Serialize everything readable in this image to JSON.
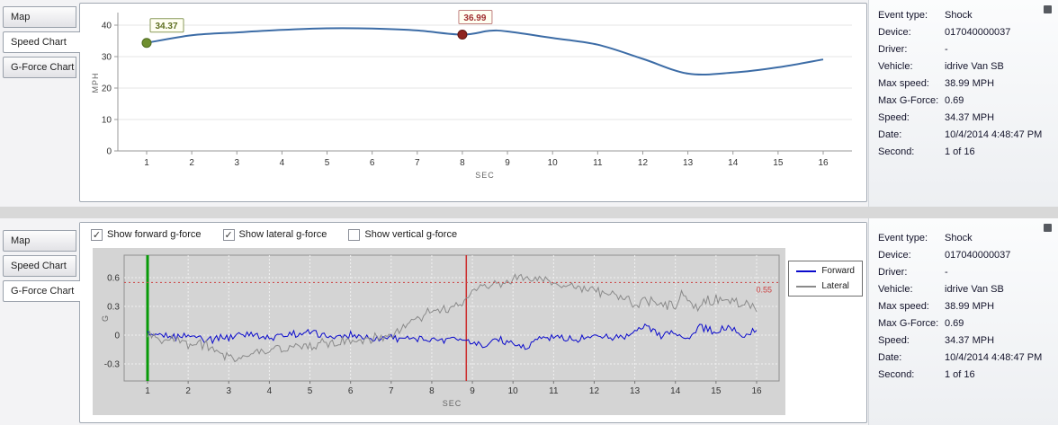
{
  "top_tabs": {
    "items": [
      {
        "label": "Map"
      },
      {
        "label": "Speed Chart"
      },
      {
        "label": "G-Force Chart"
      }
    ],
    "selected_index": 1
  },
  "bottom_tabs": {
    "items": [
      {
        "label": "Map"
      },
      {
        "label": "Speed Chart"
      },
      {
        "label": "G-Force Chart"
      }
    ],
    "selected_index": 2
  },
  "gforce_controls": {
    "checkboxes": [
      {
        "label": "Show forward g-force",
        "checked": true
      },
      {
        "label": "Show lateral g-force",
        "checked": true
      },
      {
        "label": "Show vertical g-force",
        "checked": false
      }
    ]
  },
  "event_info": {
    "rows": [
      {
        "label": "Event type:",
        "value": "Shock"
      },
      {
        "label": "Device:",
        "value": "017040000037"
      },
      {
        "label": "Driver:",
        "value": "-"
      },
      {
        "label": "Vehicle:",
        "value": "idrive Van SB"
      },
      {
        "label": "Max speed:",
        "value": "38.99 MPH"
      },
      {
        "label": "Max G-Force:",
        "value": "0.69"
      },
      {
        "label": "Speed:",
        "value": "34.37 MPH"
      },
      {
        "label": "Date:",
        "value": "10/4/2014 4:48:47 PM"
      },
      {
        "label": "Second:",
        "value": "1 of 16"
      }
    ]
  },
  "chart_data": [
    {
      "id": "speed",
      "type": "line",
      "title": "",
      "xlabel": "SEC",
      "ylabel": "MPH",
      "x_ticks": [
        1,
        2,
        3,
        4,
        5,
        6,
        7,
        8,
        9,
        10,
        11,
        12,
        13,
        14,
        15,
        16
      ],
      "y_ticks": [
        0,
        10,
        20,
        30,
        40
      ],
      "ylim": [
        0,
        40
      ],
      "x": [
        1,
        2,
        3,
        4,
        5,
        6,
        7,
        8,
        8.6,
        9,
        10,
        11,
        12,
        13,
        14,
        15,
        16
      ],
      "values": [
        34.37,
        36.8,
        37.7,
        38.5,
        38.99,
        38.9,
        38.3,
        36.99,
        38.2,
        38.0,
        35.9,
        33.8,
        29.3,
        24.6,
        24.9,
        26.6,
        29.1
      ],
      "line_color": "#3c6ca6",
      "grid": true,
      "markers": [
        {
          "x": 1,
          "y": 34.37,
          "label": "34.37",
          "fill": "#6f8f2f",
          "stroke": "#4e6b1f",
          "text_color": "#5f7020",
          "box_border": "#8a9a5a",
          "box_fill": "#fffff2",
          "label_dx": 22
        },
        {
          "x": 8,
          "y": 36.99,
          "label": "36.99",
          "fill": "#8e2420",
          "stroke": "#5e1512",
          "text_color": "#a03030",
          "box_border": "#c08080",
          "box_fill": "#fffff2",
          "label_dx": 14
        }
      ]
    },
    {
      "id": "gforce",
      "type": "line",
      "title": "",
      "xlabel": "SEC",
      "ylabel": "G",
      "x_ticks": [
        1,
        2,
        3,
        4,
        5,
        6,
        7,
        8,
        9,
        10,
        11,
        12,
        13,
        14,
        15,
        16
      ],
      "y_ticks": [
        -0.3,
        0,
        0.3,
        0.6
      ],
      "ylim": [
        -0.45,
        0.8
      ],
      "plot_bg": "#d4d4d4",
      "legend_position": "right-top",
      "threshold": {
        "y": 0.55,
        "label": "0.55",
        "color": "#cc4040",
        "style": "dotted"
      },
      "cursors": [
        {
          "x": 1,
          "color": "#089a08",
          "width": 3
        },
        {
          "x": 8.85,
          "color": "#cc2b2b",
          "width": 1.5
        }
      ],
      "series": [
        {
          "name": "Forward",
          "color": "#0a0acc",
          "noise": 0.06,
          "keys_x": [
            1,
            1.5,
            2,
            2.5,
            3,
            3.5,
            4,
            4.5,
            5,
            5.5,
            6,
            6.5,
            7,
            7.5,
            8,
            8.5,
            9,
            9.3,
            9.6,
            10,
            10.3,
            10.6,
            11,
            11.5,
            12,
            12.5,
            13,
            13.3,
            13.6,
            14,
            14.3,
            14.6,
            15,
            15.3,
            15.6,
            16
          ],
          "keys_y": [
            0.02,
            -0.03,
            0,
            -0.04,
            -0.02,
            0.02,
            -0.03,
            0,
            0.02,
            -0.02,
            0,
            -0.03,
            -0.02,
            -0.04,
            -0.05,
            -0.03,
            -0.06,
            -0.12,
            -0.04,
            -0.08,
            -0.13,
            -0.05,
            -0.02,
            -0.06,
            0,
            -0.03,
            0.03,
            0.1,
            0,
            0.05,
            -0.05,
            0.08,
            0.02,
            0.09,
            0,
            0.05
          ]
        },
        {
          "name": "Lateral",
          "color": "#8a8a8a",
          "noise": 0.08,
          "keys_x": [
            1,
            1.3,
            1.7,
            2,
            2.3,
            2.7,
            3,
            3.3,
            3.7,
            4,
            4.5,
            5,
            5.5,
            6,
            6.5,
            7,
            7.3,
            7.6,
            8,
            8.3,
            8.6,
            9,
            9.3,
            9.6,
            10,
            10.2,
            10.5,
            10.8,
            11,
            11.3,
            11.7,
            12,
            12.3,
            12.7,
            13,
            13.3,
            13.7,
            14,
            14.2,
            14.5,
            15,
            15.5,
            16
          ],
          "keys_y": [
            0,
            -0.06,
            -0.04,
            -0.1,
            -0.08,
            -0.16,
            -0.22,
            -0.24,
            -0.18,
            -0.13,
            -0.14,
            -0.1,
            -0.09,
            -0.06,
            -0.04,
            0,
            0.1,
            0.18,
            0.25,
            0.28,
            0.3,
            0.47,
            0.5,
            0.52,
            0.56,
            0.63,
            0.55,
            0.58,
            0.55,
            0.52,
            0.5,
            0.46,
            0.43,
            0.4,
            0.33,
            0.36,
            0.3,
            0.32,
            0.45,
            0.3,
            0.38,
            0.33,
            0.3
          ]
        }
      ]
    }
  ]
}
